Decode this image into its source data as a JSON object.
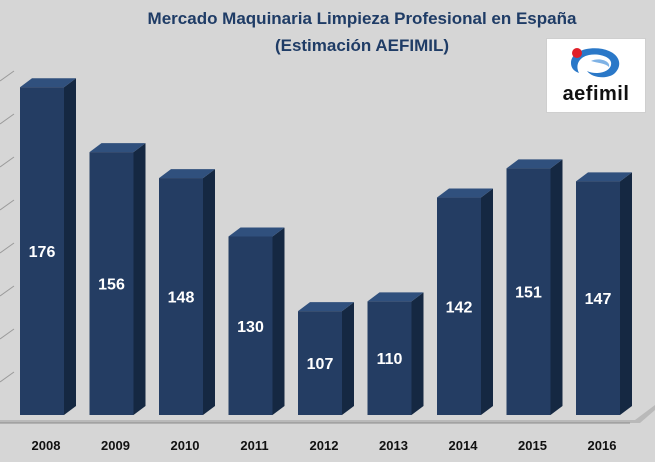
{
  "colors": {
    "bar_front": "#243d63",
    "bar_side": "#152842",
    "bar_top": "#30507d",
    "background": "#d6d6d6",
    "title": "#1f3c66",
    "logo_red": "#e0202a",
    "logo_blue": "#2a78c8"
  },
  "logo": {
    "text": "aefimil",
    "icon": "aefimil-swirl-logo"
  },
  "chart_data": {
    "type": "bar",
    "title": "Mercado Maquinaria Limpieza Profesional en España",
    "subtitle": "(Estimación AEFIMIL)",
    "categories": [
      "2008",
      "2009",
      "2010",
      "2011",
      "2012",
      "2013",
      "2014",
      "2015",
      "2016"
    ],
    "values": [
      176,
      156,
      148,
      130,
      107,
      110,
      142,
      151,
      147
    ],
    "data_labels": [
      "176",
      "156",
      "148",
      "130",
      "107",
      "110",
      "142",
      "151",
      "147"
    ],
    "ylim": [
      75,
      185
    ],
    "xlabel": "",
    "ylabel": "",
    "grid": true,
    "legend": "none",
    "style": "3d-column"
  }
}
